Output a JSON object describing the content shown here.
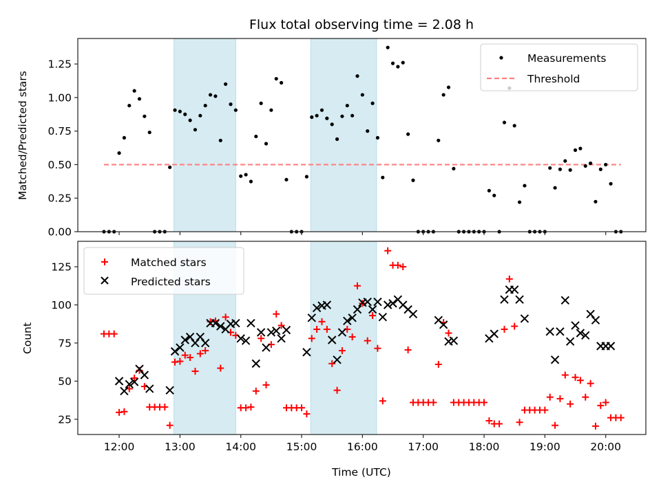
{
  "chart_data": [
    {
      "type": "scatter",
      "panel": "top",
      "title": "Flux total observing time = 2.08 h",
      "xlabel": "",
      "ylabel": "Matched/Predicted stars",
      "x_unit": "hours UTC",
      "xlim": [
        11.32,
        20.66
      ],
      "ylim": [
        0.0,
        1.44
      ],
      "yticks": [
        0.0,
        0.25,
        0.5,
        0.75,
        1.0,
        1.25
      ],
      "ytick_labels": [
        "0.00",
        "0.25",
        "0.50",
        "0.75",
        "1.00",
        "1.25"
      ],
      "xticks": [
        12,
        13,
        14,
        15,
        16,
        17,
        18,
        19,
        20
      ],
      "show_xtick_labels": false,
      "grid": false,
      "legend": {
        "placement": "upper-right",
        "entries": [
          "Measurements",
          "Threshold"
        ]
      },
      "shaded_intervals": [
        {
          "start": "12:54",
          "end": "13:55"
        },
        {
          "start": "15:09",
          "end": "16:14"
        }
      ],
      "series": [
        {
          "name": "Measurements",
          "style": "dot",
          "color": "#000000",
          "x_start": "11:45",
          "x_step_minutes": 5,
          "values": [
            0,
            0,
            0,
            0.586,
            0.7,
            0.94,
            1.05,
            0.99,
            0.86,
            0.74,
            0,
            0,
            0,
            0.48,
            0.906,
            0.896,
            0.875,
            0.83,
            0.76,
            0.865,
            0.94,
            1.02,
            1.01,
            0.68,
            1.1,
            0.95,
            0.906,
            0.414,
            0.425,
            0.374,
            0.71,
            0.957,
            0.656,
            0.906,
            1.14,
            1.11,
            0.388,
            0,
            0,
            0,
            0.41,
            0.854,
            0.865,
            0.906,
            0.845,
            0.8,
            0.69,
            0.86,
            0.94,
            0.865,
            1.16,
            1.02,
            0.75,
            0.957,
            0.7,
            0.404,
            1.373,
            1.255,
            1.23,
            1.26,
            0.727,
            0.383,
            0,
            0,
            0,
            0,
            0.68,
            1.02,
            1.076,
            0.47,
            0,
            0,
            0,
            0,
            0,
            0,
            0.306,
            0.27,
            0,
            0.814,
            1.07,
            0.79,
            0.22,
            0.343,
            0,
            0,
            0,
            0,
            0.475,
            0.327,
            0.465,
            0.527,
            0.46,
            0.608,
            0.62,
            0.49,
            0.51,
            0.224,
            0.465,
            0.5,
            0.357,
            0,
            0
          ]
        },
        {
          "name": "Threshold",
          "style": "dashed-line",
          "color": "#ff7f7f",
          "value": 0.5,
          "x_from": "11:45",
          "x_to": "20:15"
        }
      ]
    },
    {
      "type": "scatter",
      "panel": "bottom",
      "title": "",
      "xlabel": "Time (UTC)",
      "ylabel": "Count",
      "x_unit": "hours UTC",
      "xlim": [
        11.32,
        20.66
      ],
      "ylim": [
        15,
        141.7
      ],
      "yticks": [
        25,
        50,
        75,
        100,
        125
      ],
      "ytick_labels": [
        "25",
        "50",
        "75",
        "100",
        "125"
      ],
      "xticks": [
        12,
        13,
        14,
        15,
        16,
        17,
        18,
        19,
        20
      ],
      "xtick_labels": [
        "12:00",
        "13:00",
        "14:00",
        "15:00",
        "16:00",
        "17:00",
        "18:00",
        "19:00",
        "20:00"
      ],
      "grid": false,
      "legend": {
        "placement": "upper-left",
        "entries": [
          "Matched stars",
          "Predicted stars"
        ]
      },
      "shaded_intervals": [
        {
          "start": "12:54",
          "end": "13:55"
        },
        {
          "start": "15:09",
          "end": "16:14"
        }
      ],
      "series": [
        {
          "name": "Matched stars",
          "style": "plus",
          "color": "#ff0000",
          "x_start": "11:45",
          "x_step_minutes": 5,
          "values": [
            81,
            81,
            81,
            29.5,
            30,
            45,
            52,
            57,
            46.5,
            33,
            33,
            33,
            33,
            21,
            62.5,
            63,
            67,
            65.5,
            56.5,
            68,
            70,
            89,
            89.5,
            58.5,
            92,
            82,
            80,
            32.5,
            32.5,
            33,
            43.5,
            78,
            47.5,
            74,
            94,
            86.5,
            32.5,
            32.5,
            32.5,
            32.5,
            28.5,
            78,
            84,
            89,
            84,
            61.5,
            44,
            70,
            84,
            79,
            112.5,
            101,
            76.5,
            93,
            71.5,
            37,
            135.5,
            126,
            126,
            125,
            70.5,
            36,
            36,
            36,
            36,
            36,
            61,
            88.5,
            81.5,
            36,
            36,
            36,
            36,
            36,
            36,
            36,
            24,
            22,
            22,
            84,
            117,
            86,
            23,
            31,
            31,
            31,
            31,
            31,
            39.5,
            21,
            38.5,
            54,
            35,
            52.5,
            50.5,
            39.5,
            48.5,
            20.5,
            34,
            36,
            26,
            26,
            26
          ]
        },
        {
          "name": "Predicted stars",
          "style": "x",
          "color": "#000000",
          "x_start": "11:45",
          "x_step_minutes": 5,
          "values": [
            null,
            null,
            null,
            50,
            43.5,
            48,
            49.5,
            58,
            54,
            45,
            null,
            null,
            null,
            44,
            69.5,
            72,
            77,
            79,
            75,
            79,
            75,
            88,
            88,
            86,
            84,
            87.5,
            88,
            78,
            76.5,
            88,
            61.5,
            82,
            72,
            82,
            83,
            78,
            83.5,
            null,
            null,
            null,
            69,
            91.5,
            98,
            99.5,
            100,
            77,
            64,
            82,
            89.5,
            91.5,
            97,
            101.5,
            102,
            97,
            102,
            92,
            100,
            101,
            103.5,
            100,
            97,
            94,
            null,
            null,
            null,
            null,
            90,
            87,
            76,
            76.5,
            null,
            null,
            null,
            null,
            null,
            null,
            78,
            81,
            null,
            103.5,
            110,
            110,
            103.5,
            91,
            null,
            null,
            null,
            null,
            82.5,
            64,
            82.5,
            103,
            76,
            86.5,
            81.5,
            80,
            94,
            90,
            73,
            73,
            73,
            null,
            null
          ]
        }
      ]
    }
  ]
}
